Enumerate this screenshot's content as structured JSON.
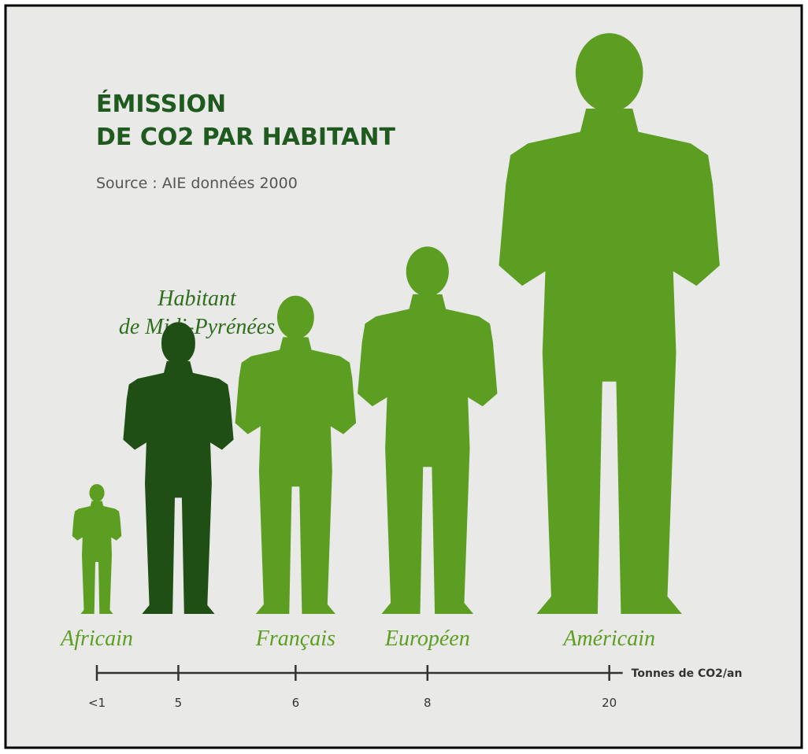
{
  "chart_data": {
    "type": "pictogram",
    "title": [
      "ÉMISSION",
      "DE CO2 PAR HABITANT"
    ],
    "subtitle": "Source : AIE données 2000",
    "annotation": [
      "Habitant",
      "de Midi-Pyrénées"
    ],
    "categories": [
      "Africain",
      null,
      "Français",
      "Européen",
      "Américain"
    ],
    "values": [
      1,
      5,
      6,
      8,
      20
    ],
    "value_labels": [
      "<1",
      "5",
      "6",
      "8",
      "20"
    ],
    "colors": [
      "#5c9e22",
      "#1f4f14",
      "#5c9e22",
      "#5c9e22",
      "#5c9e22"
    ],
    "axis_label": "Tonnes de CO2/an",
    "scale": "sqrt"
  }
}
